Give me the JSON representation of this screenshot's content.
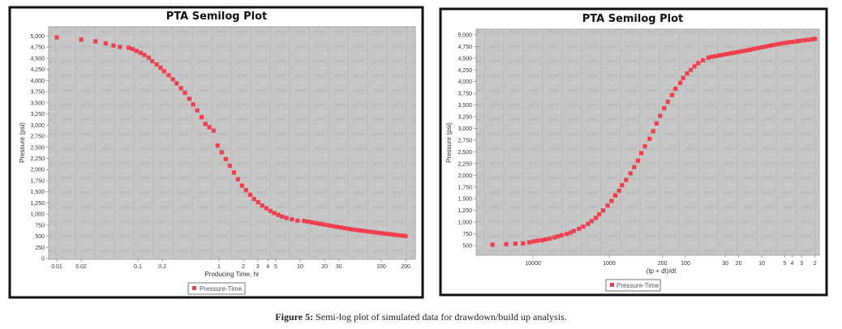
{
  "caption": {
    "label": "Figure 5:",
    "text": " Semi-log plot of simulated data for drawdown/build up analysis."
  },
  "colors": {
    "marker": "#f04050",
    "plot_bg": "#c6c6c6",
    "frame": "#111111"
  },
  "chart_data": [
    {
      "type": "scatter",
      "title": "PTA Semilog Plot",
      "xlabel": "Producing Time, hr",
      "ylabel": "Pressure (psi)",
      "xscale": "log",
      "xlim": [
        0.009,
        250
      ],
      "ylim": [
        0,
        5200
      ],
      "x_ticks": [
        0.01,
        0.02,
        0.1,
        0.2,
        1,
        2,
        3,
        4,
        5,
        10,
        20,
        30,
        100,
        200
      ],
      "x_tick_labels": [
        "0.01",
        "0.02",
        "0.1",
        "0.2",
        "1",
        "2",
        "3",
        "4",
        "5",
        "10",
        "20",
        "30",
        "100",
        "200"
      ],
      "y_ticks": [
        0,
        250,
        500,
        750,
        1000,
        1250,
        1500,
        1750,
        2000,
        2250,
        2500,
        2750,
        3000,
        3250,
        3500,
        3750,
        4000,
        4250,
        4500,
        4750,
        5000
      ],
      "y_tick_labels": [
        "0",
        "250",
        "500",
        "750",
        "1,000",
        "1,250",
        "1,500",
        "1,750",
        "2,000",
        "2,250",
        "2,500",
        "2,750",
        "3,000",
        "3,250",
        "3,500",
        "3,750",
        "4,000",
        "4,250",
        "4,500",
        "4,750",
        "5,000"
      ],
      "legend": {
        "position": "bottom-center",
        "entries": [
          "Pressure-Time"
        ]
      },
      "series": [
        {
          "name": "Pressure-Time",
          "x": [
            0.01,
            0.02,
            0.03,
            0.04,
            0.05,
            0.06,
            0.077,
            0.086,
            0.096,
            0.108,
            0.12,
            0.136,
            0.15,
            0.17,
            0.19,
            0.21,
            0.24,
            0.27,
            0.3,
            0.34,
            0.38,
            0.43,
            0.48,
            0.54,
            0.61,
            0.68,
            0.76,
            0.86,
            0.96,
            1.08,
            1.21,
            1.36,
            1.53,
            1.71,
            1.92,
            2.15,
            2.42,
            2.71,
            3.04,
            3.41,
            3.83,
            4.3,
            4.8,
            5.4,
            6.0,
            6.8,
            7.9,
            9.3,
            11.2,
            12.6,
            14.1,
            15.8,
            17.8,
            20,
            22.4,
            25.1,
            28.2,
            31.6,
            35.5,
            39.8,
            44.7,
            50.1,
            56.2,
            63.1,
            70.8,
            79.4,
            89.1,
            100,
            112,
            126,
            141,
            158,
            178,
            200
          ],
          "y": [
            4970,
            4920,
            4880,
            4836,
            4787,
            4757,
            4739,
            4708,
            4666,
            4623,
            4575,
            4514,
            4435,
            4362,
            4289,
            4210,
            4119,
            4028,
            3937,
            3827,
            3724,
            3590,
            3463,
            3329,
            3178,
            3025,
            2950,
            2874,
            2540,
            2388,
            2236,
            2084,
            1932,
            1780,
            1640,
            1537,
            1434,
            1337,
            1264,
            1191,
            1130,
            1069,
            1021,
            978,
            942,
            911,
            881,
            851,
            843,
            827,
            810,
            793,
            777,
            760,
            745,
            729,
            713,
            698,
            682,
            666,
            652,
            640,
            628,
            617,
            605,
            593,
            581,
            570,
            559,
            548,
            537,
            526,
            515,
            504
          ]
        }
      ]
    },
    {
      "type": "scatter",
      "title": "PTA Semilog Plot",
      "xlabel": "(tp + dt)/dt",
      "ylabel": "Pressure (psi)",
      "xscale": "log",
      "x_reversed": true,
      "xlim": [
        55000,
        1.5
      ],
      "ylim": [
        290,
        5120
      ],
      "x_ticks": [
        10000,
        1000,
        200,
        100,
        30,
        20,
        10,
        5,
        4,
        3,
        2
      ],
      "x_tick_labels": [
        "10000",
        "1000",
        "200",
        "100",
        "30",
        "20",
        "10",
        "5",
        "4",
        "3",
        "2"
      ],
      "y_ticks": [
        500,
        750,
        1000,
        1250,
        1500,
        1750,
        2000,
        2250,
        2500,
        2750,
        3000,
        3250,
        3500,
        3750,
        4000,
        4250,
        4500,
        4750,
        5000
      ],
      "y_tick_labels": [
        "500",
        "750",
        "1,000",
        "1,250",
        "1,500",
        "1,750",
        "2,000",
        "2,250",
        "2,500",
        "2,750",
        "3,000",
        "3,250",
        "3,500",
        "3,750",
        "4,000",
        "4,250",
        "4,500",
        "4,750",
        "5,000"
      ],
      "legend": {
        "position": "bottom-center",
        "entries": [
          "Pressure-Time"
        ]
      },
      "series": [
        {
          "name": "Pressure-Time",
          "x": [
            33900,
            22400,
            17000,
            13500,
            11200,
            9800,
            8700,
            7600,
            6800,
            6000,
            5200,
            4700,
            4200,
            3600,
            3200,
            2900,
            2500,
            2200,
            1900,
            1700,
            1500,
            1350,
            1200,
            1050,
            930,
            830,
            740,
            680,
            600,
            525,
            470,
            420,
            380,
            340,
            295,
            265,
            240,
            215,
            190,
            170,
            150,
            135,
            117,
            107,
            95,
            85,
            76,
            68,
            59,
            50,
            45,
            40,
            35.5,
            31.6,
            28.2,
            25.1,
            22.4,
            20,
            17.8,
            15.8,
            14.1,
            12.6,
            11.2,
            10,
            8.9,
            7.9,
            7.1,
            6.3,
            5.6,
            5.0,
            4.5,
            4.0,
            3.5,
            3.2,
            2.8,
            2.5,
            2.2,
            2.0
          ],
          "y": [
            517,
            529,
            540,
            546,
            569,
            587,
            604,
            615,
            633,
            650,
            673,
            696,
            719,
            748,
            777,
            812,
            858,
            904,
            962,
            1019,
            1089,
            1164,
            1250,
            1354,
            1452,
            1567,
            1671,
            1787,
            1902,
            2041,
            2173,
            2312,
            2473,
            2618,
            2779,
            2941,
            3108,
            3270,
            3431,
            3570,
            3714,
            3847,
            3974,
            4078,
            4176,
            4251,
            4326,
            4395,
            4453,
            4512,
            4530,
            4545,
            4560,
            4575,
            4590,
            4605,
            4620,
            4635,
            4650,
            4665,
            4680,
            4700,
            4716,
            4732,
            4748,
            4764,
            4780,
            4796,
            4812,
            4825,
            4836,
            4847,
            4858,
            4869,
            4880,
            4891,
            4902,
            4914
          ]
        }
      ]
    }
  ]
}
